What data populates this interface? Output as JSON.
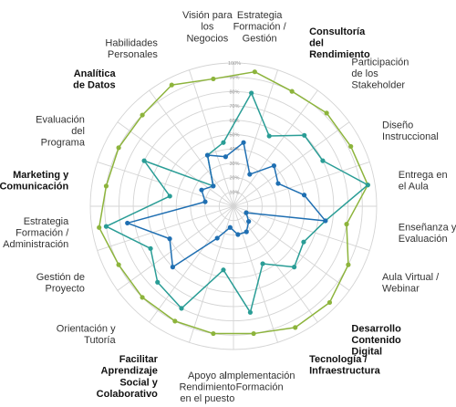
{
  "chart_data": {
    "type": "radar",
    "ticks": [
      "10%",
      "20%",
      "30%",
      "40%",
      "50%",
      "60%",
      "70%",
      "80%",
      "90%",
      "100%"
    ],
    "rlim": [
      0,
      100
    ],
    "grid": true,
    "colors": {
      "outer": "#8db43c",
      "middle": "#2a9d96",
      "inner": "#1f6fb2",
      "grid": "#d4d4d4"
    },
    "categories": [
      {
        "lines": [
          "Estrategia",
          "Formación /",
          "Gestión"
        ],
        "bold": false
      },
      {
        "lines": [
          "Consultoría",
          "del",
          "Rendimiento"
        ],
        "bold": true
      },
      {
        "lines": [
          "Participación",
          "de los",
          "Stakeholder"
        ],
        "bold": false
      },
      {
        "lines": [
          "Diseño",
          "Instruccional"
        ],
        "bold": false
      },
      {
        "lines": [
          "Entrega en",
          "el Aula"
        ],
        "bold": false
      },
      {
        "lines": [
          "Enseñanza y",
          "Evaluación"
        ],
        "bold": false
      },
      {
        "lines": [
          "Aula Virtual /",
          "Webinar"
        ],
        "bold": false
      },
      {
        "lines": [
          "Desarrollo",
          "Contenido",
          "Digital"
        ],
        "bold": true
      },
      {
        "lines": [
          "Tecnología /",
          "Infraestructura"
        ],
        "bold": true
      },
      {
        "lines": [
          "Implementación",
          "Formación"
        ],
        "bold": false
      },
      {
        "lines": [
          "Apoyo al",
          "Rendimiento",
          "en el puesto"
        ],
        "bold": false
      },
      {
        "lines": [
          "Facilitar",
          "Aprendizaje",
          "Social y",
          "Colaborativo"
        ],
        "bold": true
      },
      {
        "lines": [
          "Orientación y",
          "Tutoría"
        ],
        "bold": false
      },
      {
        "lines": [
          "Gestión de",
          "Proyecto"
        ],
        "bold": false
      },
      {
        "lines": [
          "Estrategia",
          "Formación /",
          "Administración"
        ],
        "bold": false
      },
      {
        "lines": [
          "Marketing y",
          "Comunicación"
        ],
        "bold": true
      },
      {
        "lines": [
          "Evaluación",
          "del",
          "Programa"
        ],
        "bold": false
      },
      {
        "lines": [
          "Analítica",
          "de Datos"
        ],
        "bold": true
      },
      {
        "lines": [
          "Habilidades",
          "Personales"
        ],
        "bold": false
      },
      {
        "lines": [
          "Visión para",
          "los",
          "Negocios"
        ],
        "bold": false
      }
    ],
    "series": [
      {
        "key": "outer",
        "values": [
          95,
          90,
          92,
          92,
          95,
          80,
          90,
          95,
          95,
          90,
          90,
          90,
          90,
          90,
          95,
          90,
          90,
          90,
          95,
          90
        ]
      },
      {
        "key": "middle",
        "values": [
          80,
          55,
          70,
          70,
          95,
          65,
          55,
          60,
          45,
          75,
          45,
          80,
          75,
          65,
          90,
          45,
          70,
          20,
          40,
          45
        ]
      },
      {
        "key": "inner",
        "values": [
          45,
          25,
          40,
          35,
          50,
          65,
          10,
          15,
          20,
          20,
          15,
          25,
          60,
          50,
          75,
          20,
          25,
          20,
          40,
          35
        ]
      }
    ]
  }
}
